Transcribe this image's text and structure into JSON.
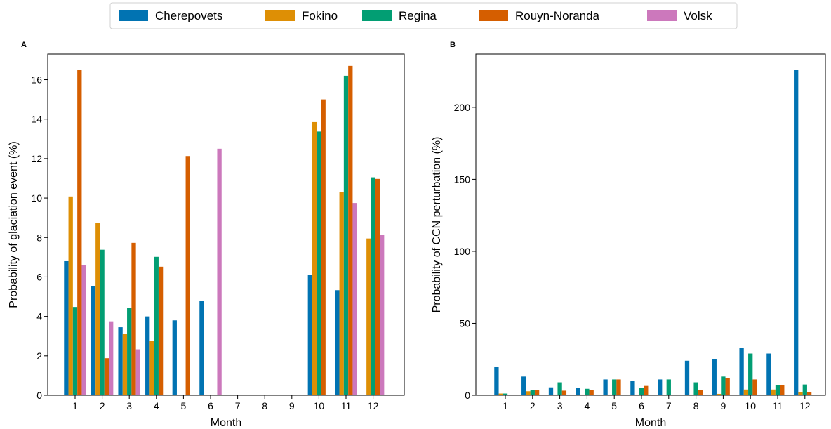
{
  "legend": {
    "placement": "top-center",
    "entries": [
      {
        "name": "Cherepovets",
        "color": "#0173b2"
      },
      {
        "name": "Fokino",
        "color": "#de8f05"
      },
      {
        "name": "Regina",
        "color": "#029e73"
      },
      {
        "name": "Rouyn-Noranda",
        "color": "#d55e00"
      },
      {
        "name": "Volsk",
        "color": "#cc78bc"
      }
    ]
  },
  "chart_data": [
    {
      "panel": "A",
      "type": "bar",
      "xlabel": "Month",
      "ylabel": "Probability of glaciation event (%)",
      "ylim": [
        0,
        17.3
      ],
      "yticks": [
        0,
        2,
        4,
        6,
        8,
        10,
        12,
        14,
        16
      ],
      "categories": [
        "1",
        "2",
        "3",
        "4",
        "5",
        "6",
        "7",
        "8",
        "9",
        "10",
        "11",
        "12"
      ],
      "series": [
        {
          "name": "Cherepovets",
          "color": "#0173b2",
          "values": [
            6.8,
            5.55,
            3.45,
            4.0,
            3.8,
            4.78,
            0,
            0,
            0,
            6.1,
            5.33,
            0
          ]
        },
        {
          "name": "Fokino",
          "color": "#de8f05",
          "values": [
            10.08,
            8.73,
            3.13,
            2.75,
            0,
            0,
            0,
            0,
            0,
            13.85,
            10.3,
            7.95
          ]
        },
        {
          "name": "Regina",
          "color": "#029e73",
          "values": [
            4.48,
            7.38,
            4.43,
            7.02,
            0,
            0,
            0,
            0,
            0,
            13.37,
            16.2,
            11.05
          ]
        },
        {
          "name": "Rouyn-Noranda",
          "color": "#d55e00",
          "values": [
            16.5,
            1.88,
            7.73,
            6.52,
            12.13,
            0,
            0,
            0,
            0,
            15.0,
            16.7,
            10.97
          ]
        },
        {
          "name": "Volsk",
          "color": "#cc78bc",
          "values": [
            6.6,
            3.75,
            2.33,
            0,
            0,
            12.5,
            0,
            0,
            0,
            0,
            9.75,
            8.12
          ]
        }
      ]
    },
    {
      "panel": "B",
      "type": "bar",
      "xlabel": "Month",
      "ylabel": "Probability of CCN perturbation (%)",
      "ylim": [
        0,
        237
      ],
      "yticks": [
        0,
        50,
        100,
        150,
        200
      ],
      "categories": [
        "1",
        "2",
        "3",
        "4",
        "5",
        "6",
        "7",
        "8",
        "9",
        "10",
        "11",
        "12"
      ],
      "series": [
        {
          "name": "Cherepovets",
          "color": "#0173b2",
          "values": [
            20,
            13,
            5.5,
            5,
            11,
            10,
            11,
            24,
            25,
            33,
            29,
            226
          ]
        },
        {
          "name": "Fokino",
          "color": "#de8f05",
          "values": [
            1.2,
            2.8,
            0.5,
            0.5,
            0.5,
            0.5,
            0,
            0.5,
            1,
            4,
            4,
            2
          ]
        },
        {
          "name": "Regina",
          "color": "#029e73",
          "values": [
            1.2,
            3.5,
            9,
            4.5,
            11,
            5,
            11,
            9,
            13,
            29,
            7,
            7.5
          ]
        },
        {
          "name": "Rouyn-Noranda",
          "color": "#d55e00",
          "values": [
            0,
            3.5,
            3.2,
            3.5,
            11,
            6.5,
            0,
            3.5,
            12,
            11,
            7,
            2
          ]
        },
        {
          "name": "Volsk",
          "color": "#cc78bc",
          "values": [
            0,
            0,
            0,
            0,
            0,
            0,
            0,
            0,
            0,
            0,
            0,
            0
          ]
        }
      ]
    }
  ]
}
